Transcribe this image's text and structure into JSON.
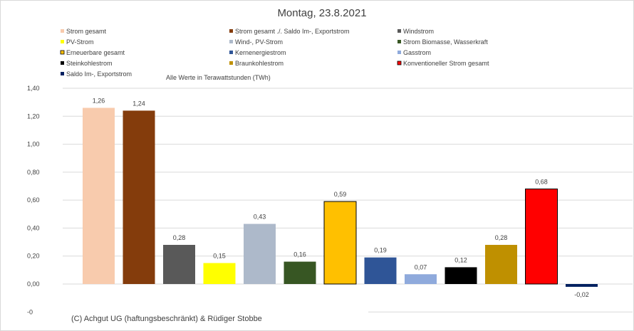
{
  "chart_data": {
    "type": "bar",
    "title": "Montag, 23.8.2021",
    "unit_note": "Alle Werte in Terawattstunden (TWh)",
    "footer": "(C) Achgut UG (haftungsbeschränkt) & Rüdiger Stobbe",
    "categories": [
      "Strom gesamt",
      "Strom gesamt ./. Saldo Im-, Exportstrom",
      "Windstrom",
      "PV-Strom",
      "Wind-, PV-Strom",
      "Strom Biomasse, Wasserkraft",
      "Erneuerbare gesamt",
      "Kernenergiestrom",
      "Gasstrom",
      "Steinkohlestrom",
      "Braunkohlestrom",
      "Konventioneller Strom gesamt",
      "Saldo Im-, Exportstrom"
    ],
    "values": [
      1.26,
      1.24,
      0.28,
      0.15,
      0.43,
      0.16,
      0.59,
      0.19,
      0.07,
      0.12,
      0.28,
      0.68,
      -0.02
    ],
    "value_labels": [
      "1,26",
      "1,24",
      "0,28",
      "0,15",
      "0,43",
      "0,16",
      "0,59",
      "0,19",
      "0,07",
      "0,12",
      "0,28",
      "0,68",
      "-0,02"
    ],
    "colors": [
      "#f8cbad",
      "#843c0c",
      "#595959",
      "#ffff00",
      "#adb9ca",
      "#375623",
      "#ffc000",
      "#2f5597",
      "#8faadc",
      "#000000",
      "#bf9000",
      "#ff0000",
      "#002060"
    ],
    "outlined": [
      false,
      false,
      false,
      false,
      false,
      false,
      true,
      false,
      false,
      false,
      false,
      true,
      false
    ],
    "ylim": [
      -0.2,
      1.4
    ],
    "y_ticks": [
      {
        "v": 1.4,
        "label": "1,40"
      },
      {
        "v": 1.2,
        "label": "1,20"
      },
      {
        "v": 1.0,
        "label": "1,00"
      },
      {
        "v": 0.8,
        "label": "0,80"
      },
      {
        "v": 0.6,
        "label": "0,60"
      },
      {
        "v": 0.4,
        "label": "0,40"
      },
      {
        "v": 0.2,
        "label": "0,20"
      },
      {
        "v": 0.0,
        "label": "0,00"
      },
      {
        "v": -0.2,
        "label": "-0"
      }
    ],
    "grid": true,
    "legend_position": "top"
  }
}
